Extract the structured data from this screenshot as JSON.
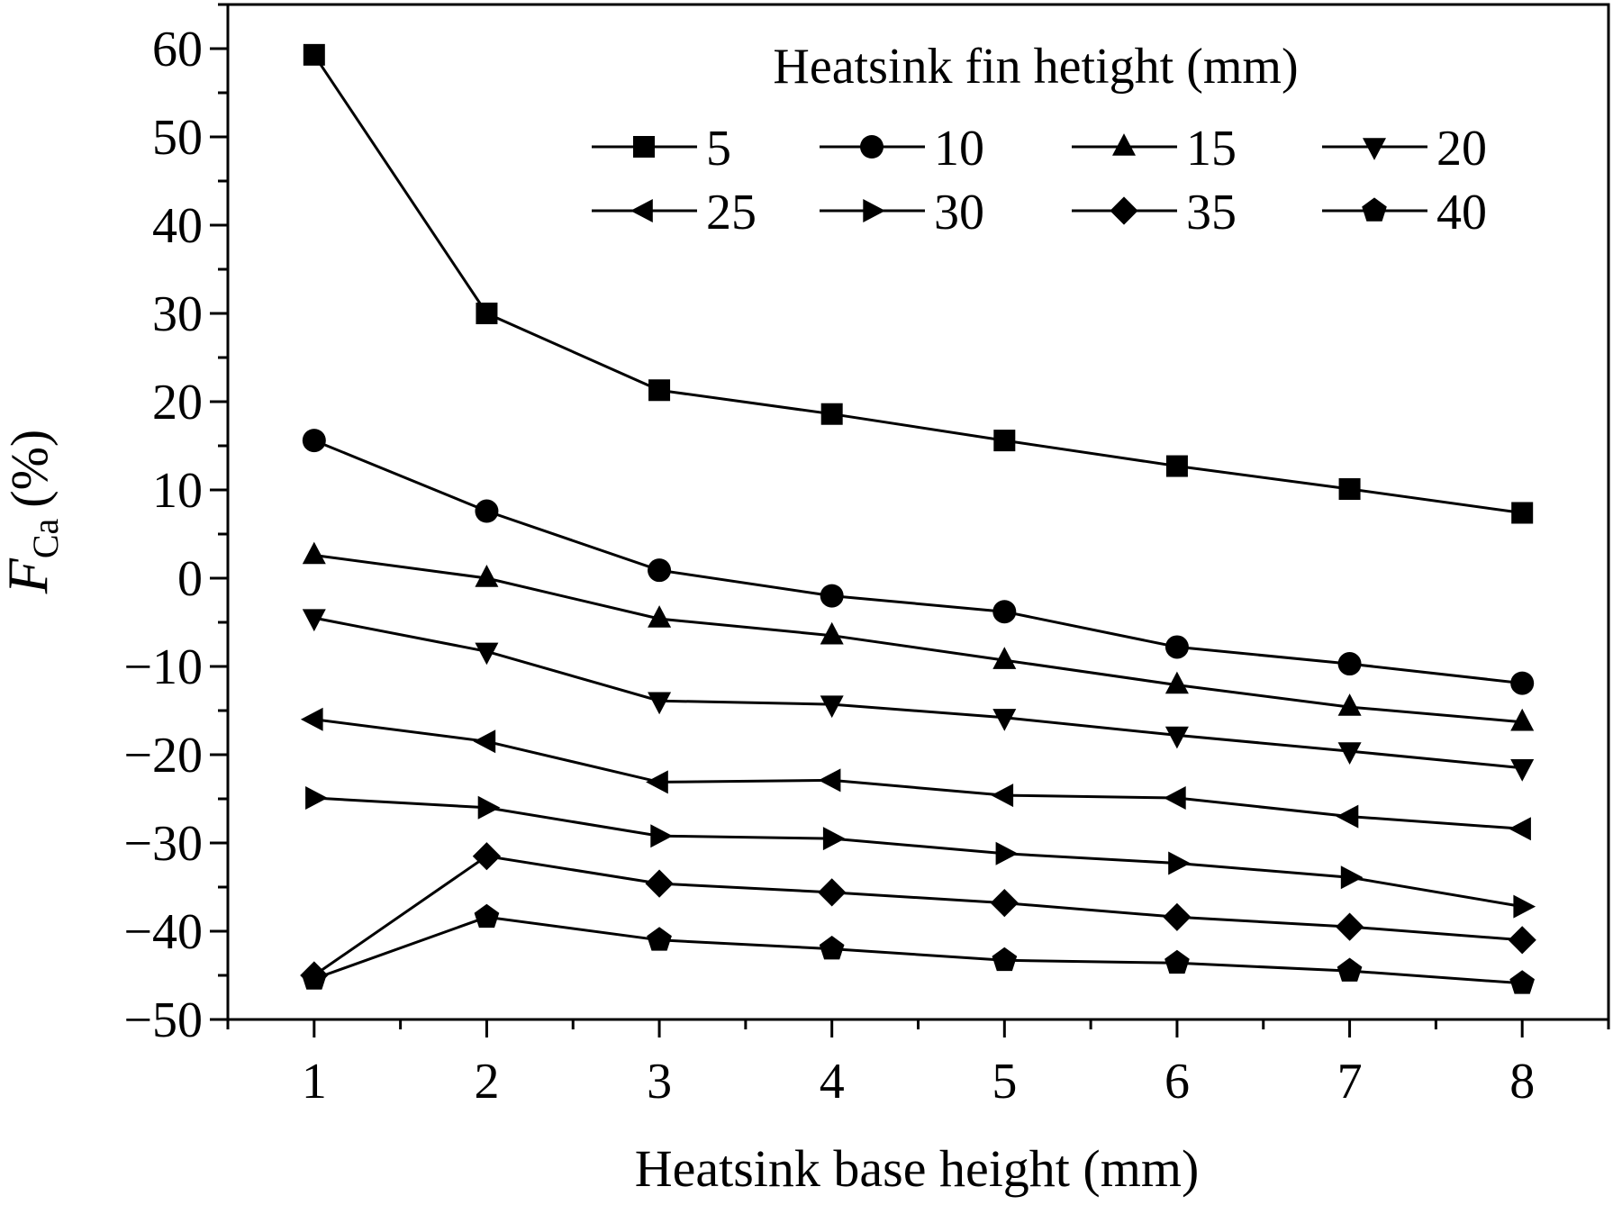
{
  "chart_data": {
    "type": "line",
    "xlabel": "Heatsink base height (mm)",
    "ylabel": {
      "symbol": "F",
      "subscript": "Ca",
      "unit": "(%)"
    },
    "xlim": [
      0.5,
      8.5
    ],
    "ylim": [
      -50,
      65
    ],
    "x_ticks": [
      "1",
      "2",
      "3",
      "4",
      "5",
      "6",
      "7",
      "8"
    ],
    "y_ticks": [
      "60",
      "50",
      "40",
      "30",
      "20",
      "10",
      "0",
      "−10",
      "−20",
      "−30",
      "−40",
      "−50"
    ],
    "x": [
      1,
      2,
      3,
      4,
      5,
      6,
      7,
      8
    ],
    "legend_title": "Heatsink fin hetight (mm)",
    "legend_position": "top-right",
    "grid": false,
    "line_color": "#000000",
    "series": [
      {
        "name": "5",
        "marker": "square",
        "values": [
          59.3,
          30.0,
          21.3,
          18.6,
          15.6,
          12.7,
          10.1,
          7.4
        ]
      },
      {
        "name": "10",
        "marker": "circle",
        "values": [
          15.6,
          7.6,
          0.9,
          -2.0,
          -3.8,
          -7.8,
          -9.7,
          -11.9
        ]
      },
      {
        "name": "15",
        "marker": "triangle-up",
        "values": [
          2.6,
          0.0,
          -4.6,
          -6.5,
          -9.3,
          -12.1,
          -14.6,
          -16.3
        ]
      },
      {
        "name": "20",
        "marker": "triangle-down",
        "values": [
          -4.5,
          -8.3,
          -13.9,
          -14.3,
          -15.8,
          -17.8,
          -19.6,
          -21.5
        ]
      },
      {
        "name": "25",
        "marker": "triangle-left",
        "values": [
          -16.0,
          -18.5,
          -23.1,
          -22.9,
          -24.6,
          -24.9,
          -27.0,
          -28.4
        ]
      },
      {
        "name": "30",
        "marker": "triangle-right",
        "values": [
          -24.9,
          -26.0,
          -29.2,
          -29.5,
          -31.2,
          -32.3,
          -33.9,
          -37.2
        ]
      },
      {
        "name": "35",
        "marker": "diamond",
        "values": [
          -45.0,
          -31.5,
          -34.6,
          -35.6,
          -36.8,
          -38.4,
          -39.5,
          -41.0
        ]
      },
      {
        "name": "40",
        "marker": "pentagon",
        "values": [
          -45.4,
          -38.4,
          -41.0,
          -42.0,
          -43.3,
          -43.6,
          -44.5,
          -45.9
        ]
      }
    ]
  }
}
